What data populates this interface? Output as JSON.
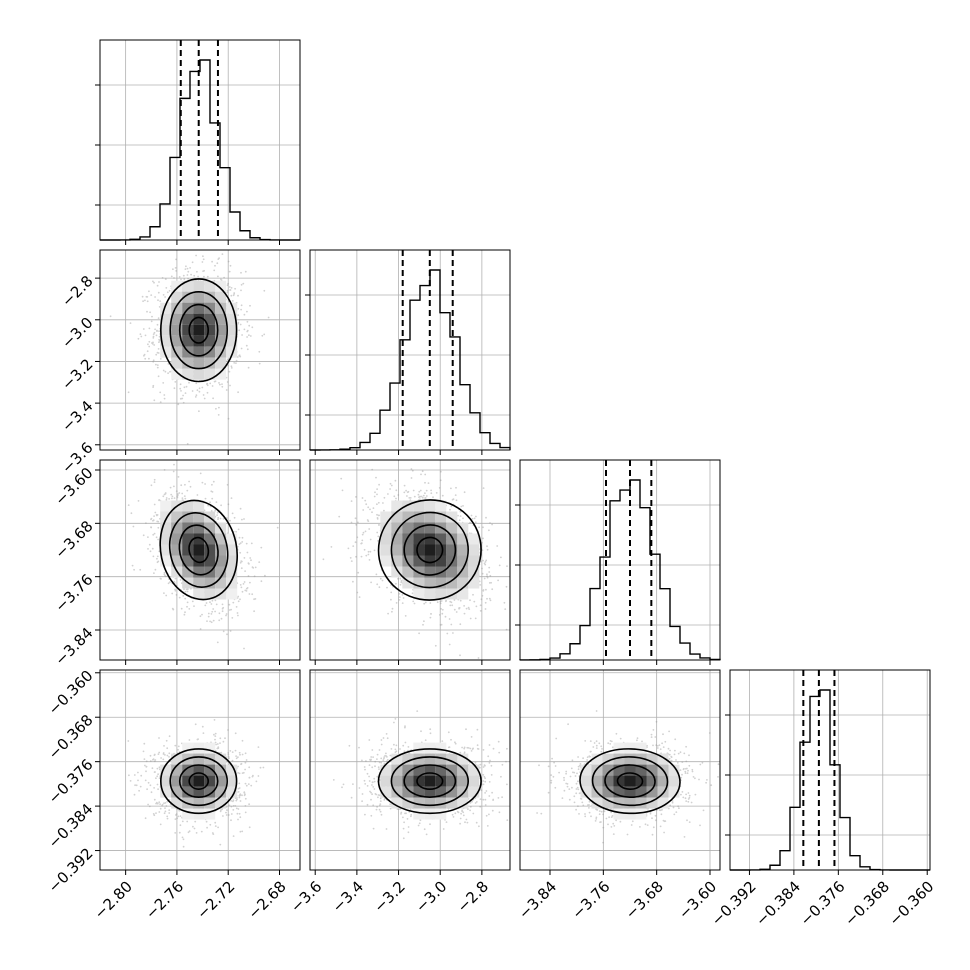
{
  "chart_data": {
    "type": "corner",
    "grid": true,
    "parameters": [
      {
        "ticks": [
          -2.8,
          -2.76,
          -2.72,
          -2.68
        ],
        "tick_labels": [
          "−2.80",
          "−2.76",
          "−2.72",
          "−2.68"
        ],
        "range": [
          -2.82,
          -2.664
        ],
        "mean": -2.743,
        "std": 0.0148,
        "quantiles": [
          -2.757,
          -2.743,
          -2.728
        ]
      },
      {
        "ticks": [
          -3.6,
          -3.4,
          -3.2,
          -3.0,
          -2.8
        ],
        "tick_labels": [
          "−3.6",
          "−3.4",
          "−3.2",
          "−3.0",
          "−2.8"
        ],
        "range": [
          -3.625,
          -2.665
        ],
        "mean": -3.05,
        "std": 0.123,
        "quantiles": [
          -3.18,
          -3.05,
          -2.94
        ]
      },
      {
        "ticks": [
          -3.84,
          -3.76,
          -3.68,
          -3.6
        ],
        "tick_labels": [
          "−3.84",
          "−3.76",
          "−3.68",
          "−3.60"
        ],
        "range": [
          -3.885,
          -3.585
        ],
        "mean": -3.72,
        "std": 0.0375,
        "quantiles": [
          -3.756,
          -3.72,
          -3.688
        ]
      },
      {
        "ticks": [
          -0.392,
          -0.384,
          -0.376,
          -0.368,
          -0.36
        ],
        "tick_labels": [
          "−0.392",
          "−0.384",
          "−0.376",
          "−0.368",
          "−0.360"
        ],
        "range": [
          -0.3955,
          -0.3595
        ],
        "mean": -0.3795,
        "std": 0.0029,
        "quantiles": [
          -0.3823,
          -0.3795,
          -0.3767
        ]
      }
    ],
    "correlations": {
      "1,0": 0.0,
      "2,0": -0.35,
      "2,1": -0.3,
      "3,0": 0.0,
      "3,1": 0.0,
      "3,2": 0.05
    },
    "histogram_bins": 20,
    "contour_levels": [
      0.5,
      1.0,
      1.5,
      2.0
    ],
    "colors": {
      "hist": "#000000",
      "density": "#000000",
      "points": "#9a9a9a",
      "grid": "#b0b0b0"
    }
  }
}
